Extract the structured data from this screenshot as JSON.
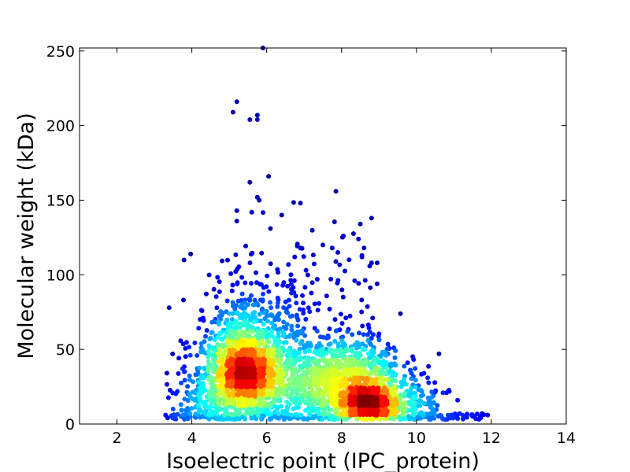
{
  "chart_data": {
    "type": "scatter",
    "title": "",
    "xlabel": "Isoelectric point (IPC_protein)",
    "ylabel": "Molecular weight (kDa)",
    "xlim": [
      1,
      14
    ],
    "ylim": [
      0,
      252
    ],
    "xticks": [
      2,
      4,
      6,
      8,
      10,
      12,
      14
    ],
    "yticks": [
      0,
      50,
      100,
      150,
      200,
      250
    ],
    "grid": false,
    "legend": "none",
    "colormap": "jet (point density)",
    "density_peaks": [
      {
        "x": 5.4,
        "y": 32,
        "level": "highest"
      },
      {
        "x": 8.7,
        "y": 13,
        "level": "high"
      },
      {
        "x": 8.3,
        "y": 35,
        "level": "medium"
      }
    ],
    "outliers": [
      {
        "x": 5.2,
        "y": 216
      },
      {
        "x": 5.1,
        "y": 209
      },
      {
        "x": 5.75,
        "y": 207
      },
      {
        "x": 5.55,
        "y": 204
      },
      {
        "x": 5.75,
        "y": 204
      },
      {
        "x": 5.9,
        "y": 252
      },
      {
        "x": 6.05,
        "y": 166
      },
      {
        "x": 5.55,
        "y": 162
      },
      {
        "x": 7.85,
        "y": 156
      },
      {
        "x": 5.75,
        "y": 152
      },
      {
        "x": 5.8,
        "y": 150
      },
      {
        "x": 6.9,
        "y": 148
      },
      {
        "x": 5.2,
        "y": 143
      },
      {
        "x": 5.6,
        "y": 142
      },
      {
        "x": 6.4,
        "y": 140
      },
      {
        "x": 8.8,
        "y": 138
      },
      {
        "x": 5.2,
        "y": 136
      },
      {
        "x": 8.5,
        "y": 134
      },
      {
        "x": 6.1,
        "y": 131
      },
      {
        "x": 8.05,
        "y": 126
      },
      {
        "x": 8.45,
        "y": 124
      },
      {
        "x": 7.5,
        "y": 120
      },
      {
        "x": 7.75,
        "y": 118
      },
      {
        "x": 8.6,
        "y": 118
      },
      {
        "x": 6.9,
        "y": 118
      },
      {
        "x": 7.9,
        "y": 115
      },
      {
        "x": 6.75,
        "y": 112
      },
      {
        "x": 8.2,
        "y": 110
      },
      {
        "x": 8.8,
        "y": 108
      },
      {
        "x": 8.95,
        "y": 108
      },
      {
        "x": 7.05,
        "y": 103
      },
      {
        "x": 7.35,
        "y": 97
      },
      {
        "x": 8.35,
        "y": 96
      },
      {
        "x": 8.95,
        "y": 94
      },
      {
        "x": 10.6,
        "y": 47
      },
      {
        "x": 10.2,
        "y": 34
      },
      {
        "x": 10.3,
        "y": 31
      },
      {
        "x": 10.8,
        "y": 21
      },
      {
        "x": 11.1,
        "y": 16
      },
      {
        "x": 11.9,
        "y": 6
      },
      {
        "x": 11.7,
        "y": 5
      },
      {
        "x": 3.3,
        "y": 6
      },
      {
        "x": 3.5,
        "y": 10
      },
      {
        "x": 4.3,
        "y": 71
      },
      {
        "x": 3.9,
        "y": 20
      }
    ]
  }
}
